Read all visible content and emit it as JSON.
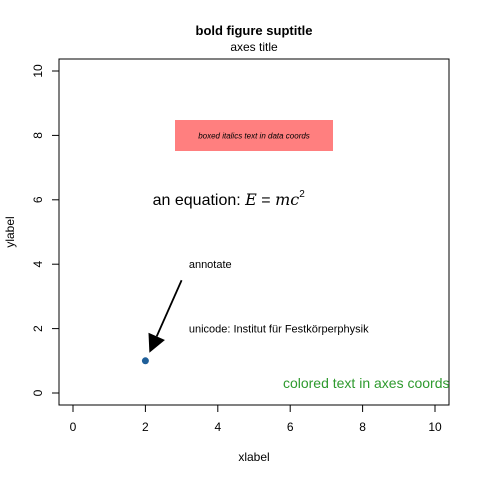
{
  "chart_data": {
    "type": "scatter",
    "title": "bold figure suptitle",
    "subtitle": "axes title",
    "xlabel": "xlabel",
    "ylabel": "ylabel",
    "xlim": [
      0,
      10
    ],
    "ylim": [
      0,
      10
    ],
    "x_ticks": [
      "0",
      "2",
      "4",
      "6",
      "8",
      "10"
    ],
    "y_ticks": [
      "0",
      "2",
      "4",
      "6",
      "8",
      "10"
    ],
    "grid": false,
    "series": [
      {
        "x": [
          2
        ],
        "y": [
          1
        ],
        "color": "#1f5f99"
      }
    ],
    "annotations": {
      "boxed_text": {
        "text": "boxed italics text in data coords",
        "x": 5,
        "y": 8,
        "box_color": "#ff7f7f"
      },
      "equation": {
        "prefix": "an equation: ",
        "lhs": "E",
        "equals": " = ",
        "rhs": "mc",
        "power": "2",
        "x": 2.2,
        "y": 6
      },
      "annotate": {
        "text": "annotate",
        "x": 3.2,
        "y": 4,
        "arrow_to_x": 2,
        "arrow_to_y": 1,
        "arrow_from_x": 3,
        "arrow_from_y": 3.5
      },
      "unicode": {
        "text": "unicode: Institut für Festkörperphysik",
        "x": 3.2,
        "y": 2
      },
      "colored_text": {
        "text": "colored text in axes coords",
        "color": "#2e9a2e",
        "x": 8.1,
        "y": 0.15
      }
    }
  }
}
